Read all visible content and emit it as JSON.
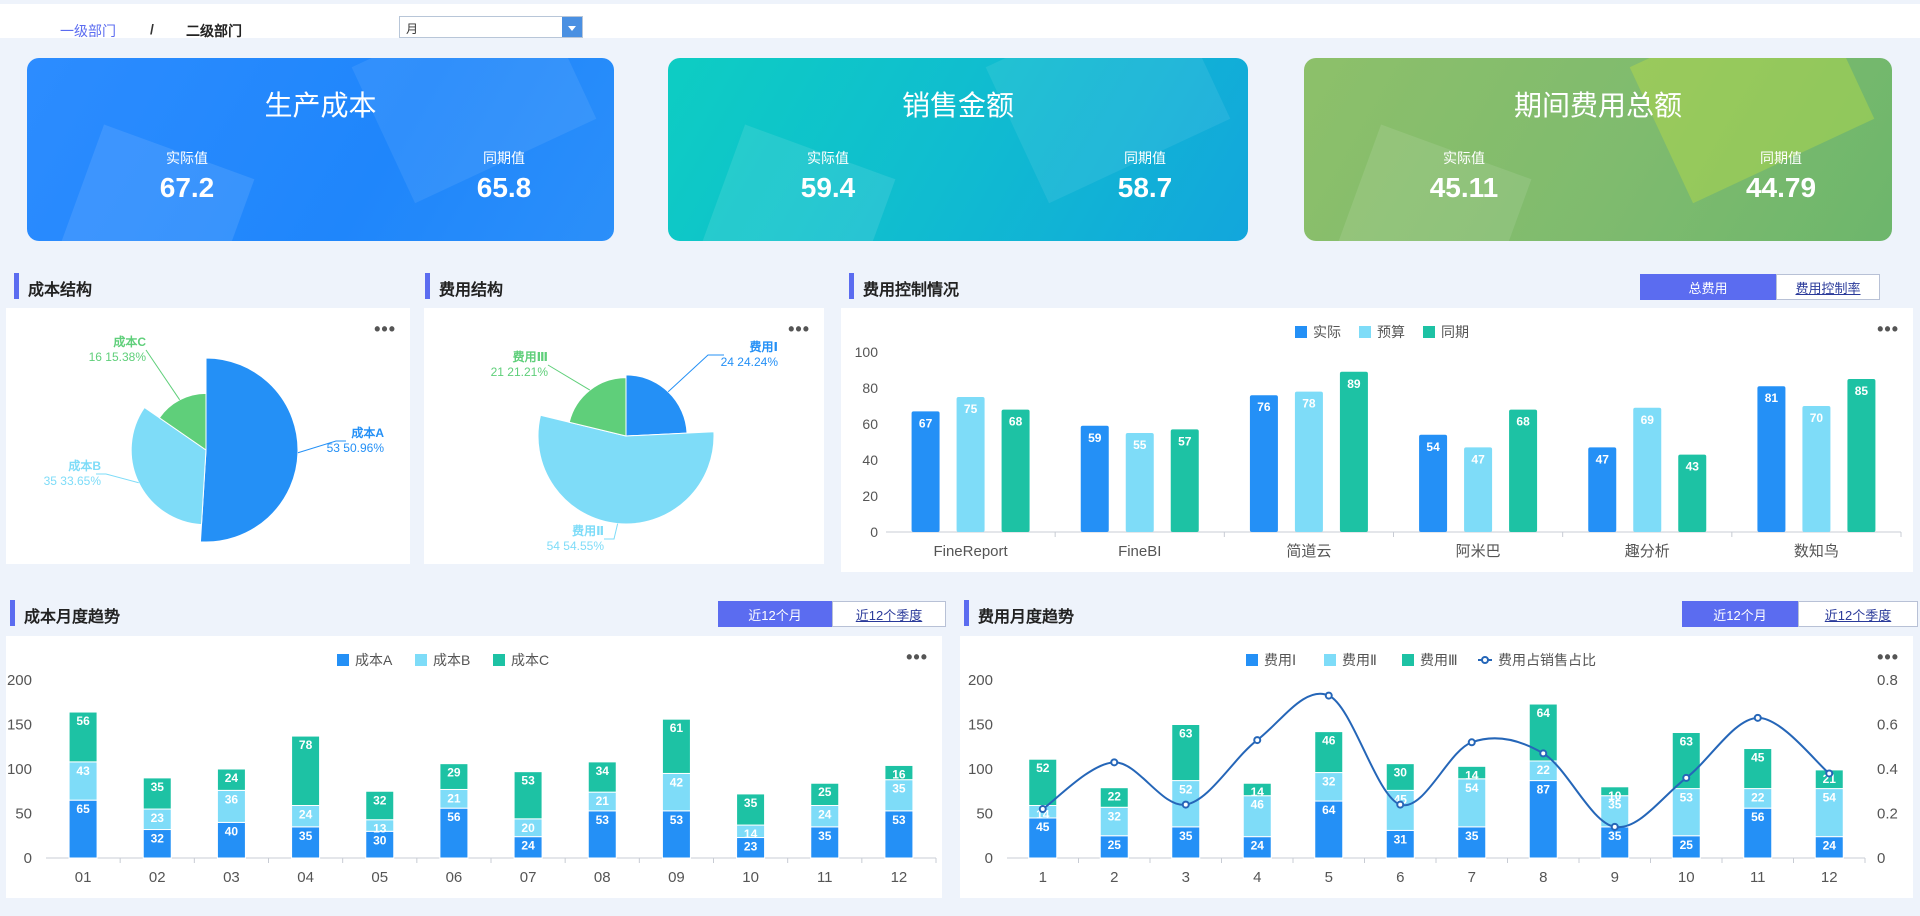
{
  "breadcrumb": {
    "level1": "一级部门",
    "separator": "/",
    "level2": "二级部门"
  },
  "period_select": {
    "value": "月"
  },
  "kpis": [
    {
      "title": "生产成本",
      "actual_label": "实际值",
      "actual": "67.2",
      "prior_label": "同期值",
      "prior": "65.8"
    },
    {
      "title": "销售金额",
      "actual_label": "实际值",
      "actual": "59.4",
      "prior_label": "同期值",
      "prior": "58.7"
    },
    {
      "title": "期间费用总额",
      "actual_label": "实际值",
      "actual": "45.11",
      "prior_label": "同期值",
      "prior": "44.79"
    }
  ],
  "sections": {
    "cost_structure": "成本结构",
    "expense_structure": "费用结构",
    "expense_control": "费用控制情况",
    "cost_trend": "成本月度趋势",
    "expense_trend": "费用月度趋势"
  },
  "more_label": "•••",
  "toggles": {
    "expense_control": [
      "总费用",
      "费用控制率"
    ],
    "cost_trend": [
      "近12个月",
      "近12个季度"
    ],
    "expense_trend": [
      "近12个月",
      "近12个季度"
    ]
  },
  "colors": {
    "blue": "#2490f6",
    "light": "#7edcf8",
    "teal": "#1dc2a4",
    "green": "#5fcf7a",
    "accent": "#5b6cf0"
  },
  "chart_data": [
    {
      "id": "cost_structure",
      "type": "pie",
      "variant": "rose",
      "slices": [
        {
          "name": "成本A",
          "value": 53,
          "pct": "50.96%"
        },
        {
          "name": "成本B",
          "value": 35,
          "pct": "33.65%"
        },
        {
          "name": "成本C",
          "value": 16,
          "pct": "15.38%"
        }
      ]
    },
    {
      "id": "expense_structure",
      "type": "pie",
      "variant": "rose",
      "slices": [
        {
          "name": "费用Ⅰ",
          "value": 24,
          "pct": "24.24%"
        },
        {
          "name": "费用Ⅱ",
          "value": 54,
          "pct": "54.55%"
        },
        {
          "name": "费用Ⅲ",
          "value": 21,
          "pct": "21.21%"
        }
      ]
    },
    {
      "id": "expense_control",
      "type": "bar",
      "categories": [
        "FineReport",
        "FineBI",
        "简道云",
        "阿米巴",
        "趣分析",
        "数知鸟"
      ],
      "series": [
        {
          "name": "实际",
          "values": [
            67,
            59,
            76,
            54,
            47,
            81
          ]
        },
        {
          "name": "预算",
          "values": [
            75,
            55,
            78,
            47,
            69,
            70
          ]
        },
        {
          "name": "同期",
          "values": [
            68,
            57,
            89,
            68,
            43,
            85
          ]
        }
      ],
      "yticks": [
        0,
        20,
        40,
        60,
        80,
        100
      ],
      "ylim": [
        0,
        100
      ],
      "legend": "top"
    },
    {
      "id": "cost_trend",
      "type": "bar",
      "stacked": true,
      "categories": [
        "01",
        "02",
        "03",
        "04",
        "05",
        "06",
        "07",
        "08",
        "09",
        "10",
        "11",
        "12"
      ],
      "series": [
        {
          "name": "成本A",
          "values": [
            65,
            32,
            40,
            35,
            30,
            56,
            24,
            53,
            53,
            23,
            35,
            53
          ]
        },
        {
          "name": "成本B",
          "values": [
            43,
            23,
            36,
            24,
            13,
            21,
            20,
            21,
            42,
            14,
            24,
            35
          ]
        },
        {
          "name": "成本C",
          "values": [
            56,
            35,
            24,
            78,
            32,
            29,
            53,
            34,
            61,
            35,
            25,
            16
          ]
        }
      ],
      "yticks": [
        0,
        50,
        100,
        150,
        200
      ],
      "ylim": [
        0,
        200
      ],
      "legend": "top"
    },
    {
      "id": "expense_trend",
      "type": "bar",
      "stacked": true,
      "categories": [
        "1",
        "2",
        "3",
        "4",
        "5",
        "6",
        "7",
        "8",
        "9",
        "10",
        "11",
        "12"
      ],
      "series": [
        {
          "name": "费用Ⅰ",
          "values": [
            45,
            25,
            35,
            24,
            64,
            31,
            35,
            87,
            35,
            25,
            56,
            24
          ]
        },
        {
          "name": "费用Ⅱ",
          "values": [
            14,
            32,
            52,
            46,
            32,
            45,
            54,
            22,
            35,
            53,
            22,
            54
          ]
        },
        {
          "name": "费用Ⅲ",
          "values": [
            52,
            22,
            63,
            14,
            46,
            30,
            14,
            64,
            10,
            63,
            45,
            21
          ]
        }
      ],
      "line": {
        "name": "费用占销售占比",
        "values": [
          0.22,
          0.43,
          0.24,
          0.53,
          0.73,
          0.24,
          0.52,
          0.47,
          0.14,
          0.36,
          0.63,
          0.38
        ]
      },
      "yticks": [
        0,
        50,
        100,
        150,
        200
      ],
      "ylim": [
        0,
        200
      ],
      "y2ticks": [
        "0",
        "0.2",
        "0.4",
        "0.6",
        "0.8"
      ],
      "y2lim": [
        0,
        0.8
      ],
      "legend": "top"
    }
  ]
}
